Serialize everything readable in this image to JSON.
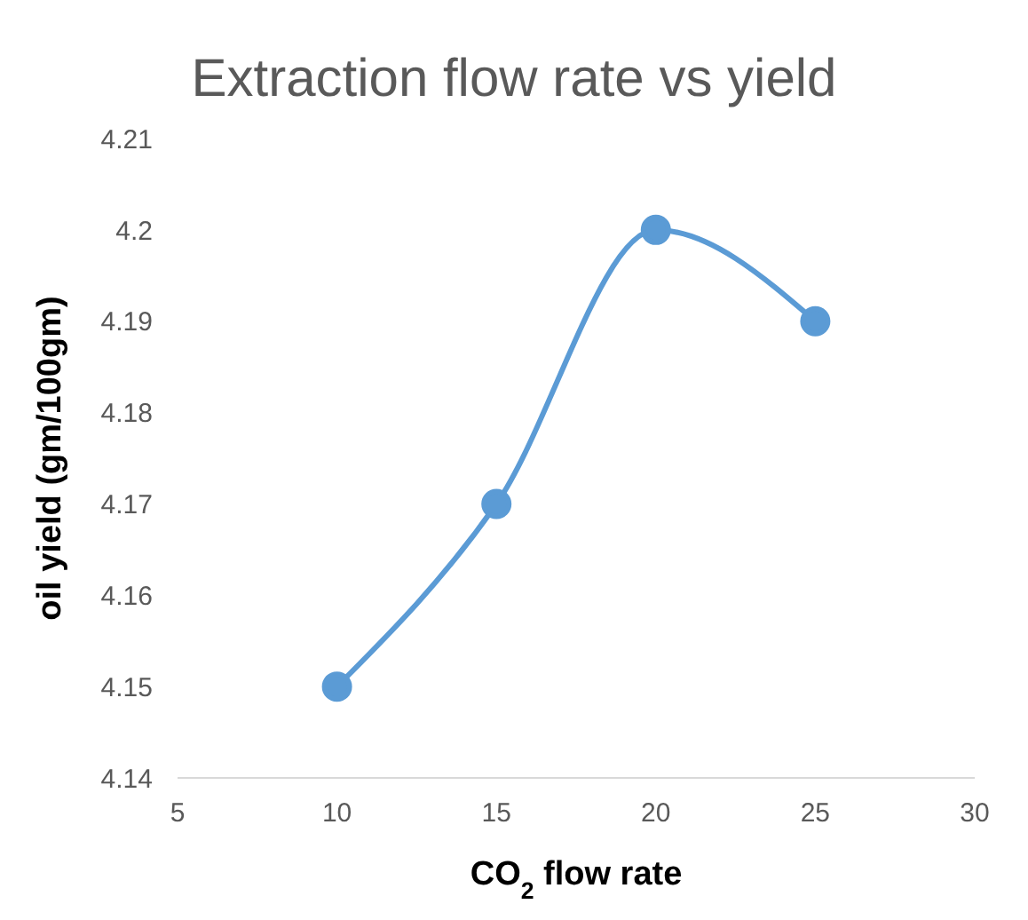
{
  "chart_data": {
    "type": "line",
    "title": "Extraction flow rate vs yield",
    "xlabel": "CO$_{2}$ flow rate",
    "ylabel": "oil yield (gm/100gm)",
    "x": [
      10,
      15,
      20,
      25
    ],
    "series": [
      {
        "color": "#5b9bd5",
        "values": [
          4.15,
          4.17,
          4.2,
          4.19
        ]
      }
    ],
    "xlim": [
      5,
      30
    ],
    "xticks": [
      5,
      10,
      15,
      20,
      25,
      30
    ],
    "ylim": [
      4.14,
      4.21
    ],
    "yticks": [
      4.14,
      4.15,
      4.16,
      4.17,
      4.18,
      4.19,
      4.2,
      4.21
    ],
    "grid": false,
    "legend": false,
    "marker": "circle",
    "line_style": "solid"
  }
}
